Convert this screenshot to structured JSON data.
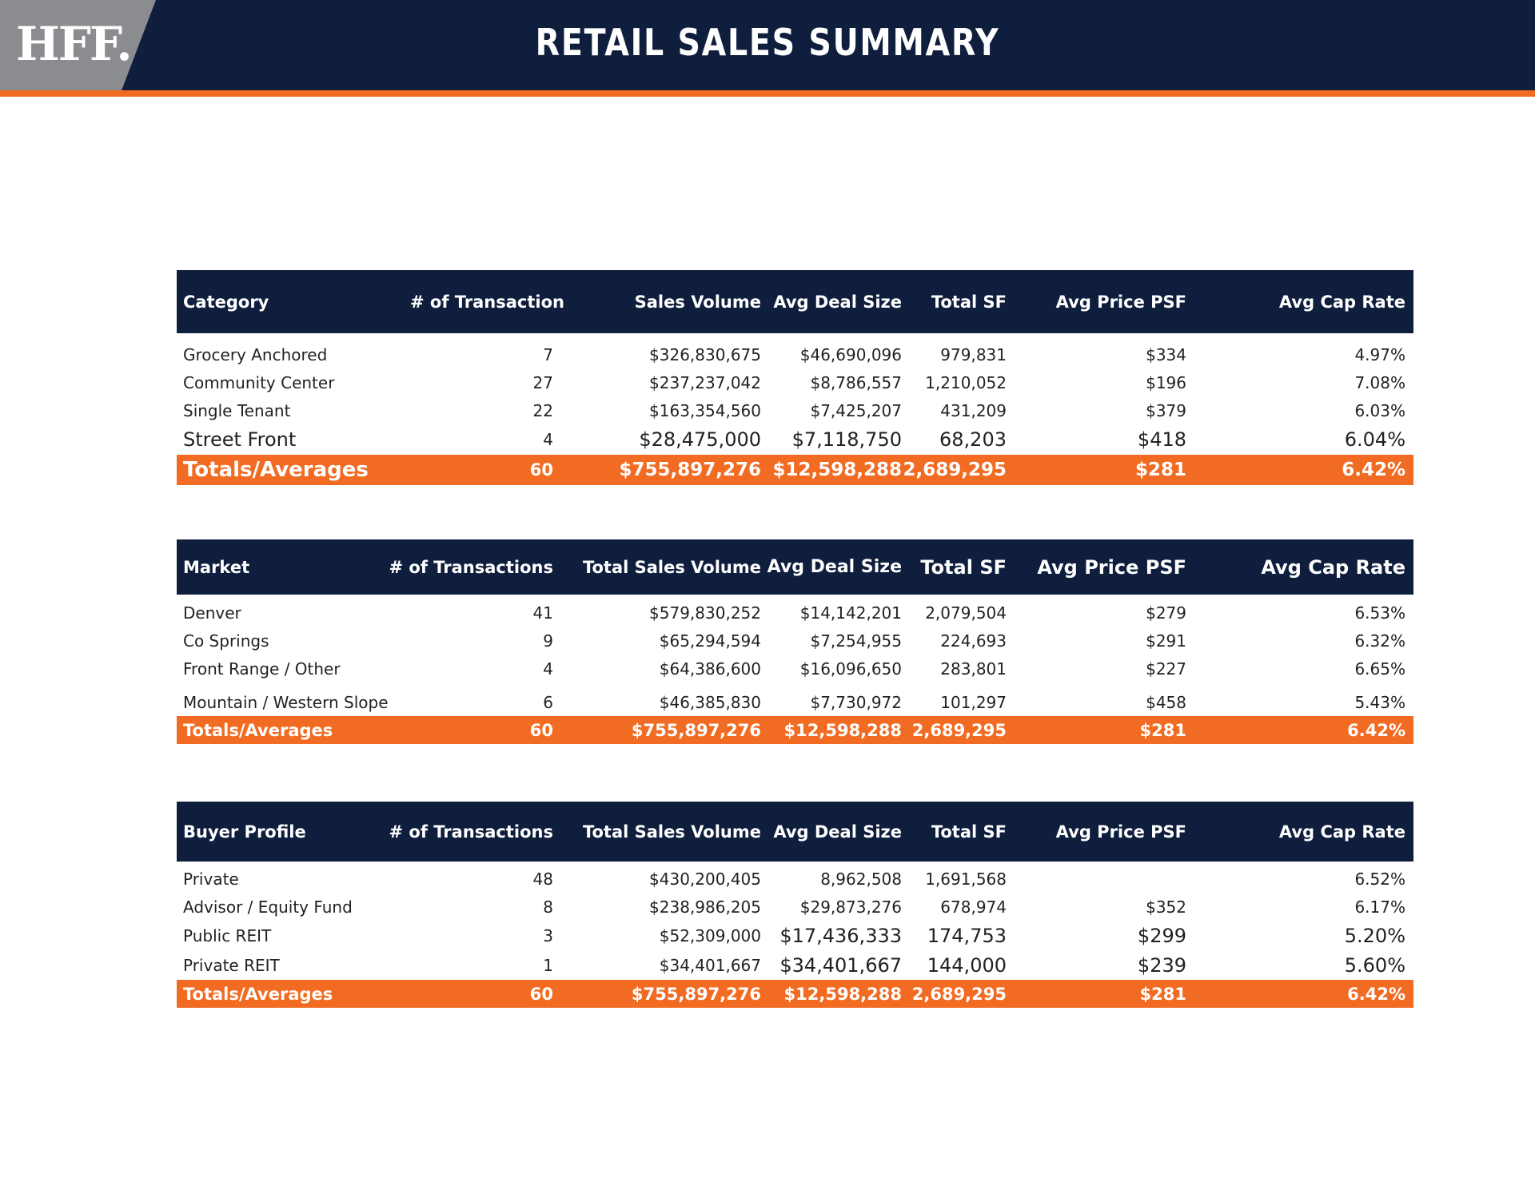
{
  "header": {
    "logo_text": "HFF.",
    "title": "RETAIL SALES SUMMARY"
  },
  "colors": {
    "navy": "#0f1e3d",
    "orange": "#f26b22",
    "logo_gray": "#8a8c8f"
  },
  "tables": [
    {
      "headers": [
        "Category",
        "# of Transaction",
        "Sales Volume",
        "Avg Deal Size",
        "Total SF",
        "Avg Price PSF",
        "Avg Cap Rate"
      ],
      "rows": [
        [
          "Grocery Anchored",
          "7",
          "$326,830,675",
          "$46,690,096",
          "979,831",
          "$334",
          "4.97%"
        ],
        [
          "Community Center",
          "27",
          "$237,237,042",
          "$8,786,557",
          "1,210,052",
          "$196",
          "7.08%"
        ],
        [
          "Single Tenant",
          "22",
          "$163,354,560",
          "$7,425,207",
          "431,209",
          "$379",
          "6.03%"
        ],
        [
          "Street Front",
          "4",
          "$28,475,000",
          "$7,118,750",
          "68,203",
          "$418",
          "6.04%"
        ]
      ],
      "totals": [
        "Totals/Averages",
        "60",
        "$755,897,276",
        "$12,598,288",
        "2,689,295",
        "$281",
        "6.42%"
      ]
    },
    {
      "headers": [
        "Market",
        "# of Transactions",
        "Total Sales Volume",
        "Avg Deal Size",
        "Total SF",
        "Avg Price PSF",
        "Avg Cap Rate"
      ],
      "rows": [
        [
          "Denver",
          "41",
          "$579,830,252",
          "$14,142,201",
          "2,079,504",
          "$279",
          "6.53%"
        ],
        [
          "Co Springs",
          "9",
          "$65,294,594",
          "$7,254,955",
          "224,693",
          "$291",
          "6.32%"
        ],
        [
          "Front Range / Other",
          "4",
          "$64,386,600",
          "$16,096,650",
          "283,801",
          "$227",
          "6.65%"
        ],
        [
          "Mountain / Western Slope",
          "6",
          "$46,385,830",
          "$7,730,972",
          "101,297",
          "$458",
          "5.43%"
        ]
      ],
      "totals": [
        "Totals/Averages",
        "60",
        "$755,897,276",
        "$12,598,288",
        "2,689,295",
        "$281",
        "6.42%"
      ]
    },
    {
      "headers": [
        "Buyer Profile",
        "# of Transactions",
        "Total Sales Volume",
        "Avg Deal Size",
        "Total SF",
        "Avg Price PSF",
        "Avg Cap Rate"
      ],
      "rows": [
        [
          "Private",
          "48",
          "$430,200,405",
          "8,962,508",
          "1,691,568",
          "",
          "6.52%"
        ],
        [
          "Advisor / Equity Fund",
          "8",
          "$238,986,205",
          "$29,873,276",
          "678,974",
          "$352",
          "6.17%"
        ],
        [
          "Public REIT",
          "3",
          "$52,309,000",
          "$17,436,333",
          "174,753",
          "$299",
          "5.20%"
        ],
        [
          "Private REIT",
          "1",
          "$34,401,667",
          "$34,401,667",
          "144,000",
          "$239",
          "5.60%"
        ]
      ],
      "totals": [
        "Totals/Averages",
        "60",
        "$755,897,276",
        "$12,598,288",
        "2,689,295",
        "$281",
        "6.42%"
      ]
    }
  ]
}
